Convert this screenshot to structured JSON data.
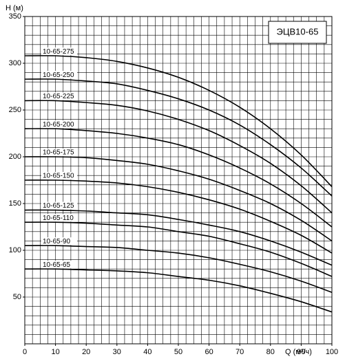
{
  "chart_data": {
    "type": "line",
    "title": "ЭЦВ10-65",
    "y_label": "H (м)",
    "x_label": "Q (м³/ч)",
    "x": [
      0,
      10,
      20,
      30,
      40,
      50,
      60,
      70,
      80,
      90,
      100
    ],
    "xlim": [
      0,
      100
    ],
    "xticks": [
      0,
      10,
      20,
      30,
      40,
      50,
      60,
      70,
      80,
      90,
      100
    ],
    "ylim": [
      0,
      350
    ],
    "yticks": [
      50,
      100,
      150,
      200,
      250,
      300,
      350
    ],
    "grid": true,
    "minor_grid": {
      "x": 2.5,
      "y": 10
    },
    "series": [
      {
        "name": "10-65-275",
        "color": "#000000",
        "values": [
          308,
          308,
          306,
          302,
          295,
          285,
          271,
          253,
          230,
          202,
          168
        ]
      },
      {
        "name": "10-65-250",
        "color": "#000000",
        "values": [
          283,
          283,
          281,
          278,
          271,
          262,
          250,
          234,
          213,
          188,
          158
        ]
      },
      {
        "name": "10-65-225",
        "color": "#000000",
        "values": [
          260,
          260,
          258,
          255,
          249,
          240,
          228,
          212,
          193,
          169,
          140
        ]
      },
      {
        "name": "10-65-200",
        "color": "#000000",
        "values": [
          230,
          230,
          228,
          225,
          220,
          213,
          202,
          188,
          171,
          150,
          125
        ]
      },
      {
        "name": "10-65-175",
        "color": "#000000",
        "values": [
          200,
          200,
          199,
          196,
          192,
          185,
          176,
          164,
          150,
          132,
          110
        ]
      },
      {
        "name": "10-65-150",
        "color": "#000000",
        "values": [
          175,
          175,
          174,
          172,
          168,
          162,
          154,
          144,
          131,
          116,
          97
        ]
      },
      {
        "name": "10-65-125",
        "color": "#000000",
        "values": [
          143,
          143,
          142,
          140,
          138,
          133,
          127,
          120,
          110,
          98,
          84
        ]
      },
      {
        "name": "10-65-110",
        "color": "#000000",
        "values": [
          130,
          130,
          129,
          127,
          125,
          120,
          115,
          107,
          98,
          86,
          72
        ]
      },
      {
        "name": "10-65-90",
        "color": "#000000",
        "values": [
          105,
          105,
          104,
          103,
          100,
          97,
          92,
          85,
          77,
          67,
          55
        ]
      },
      {
        "name": "10-65-65",
        "color": "#000000",
        "values": [
          80,
          80,
          79,
          78,
          76,
          72,
          68,
          62,
          54,
          45,
          34
        ]
      }
    ]
  }
}
